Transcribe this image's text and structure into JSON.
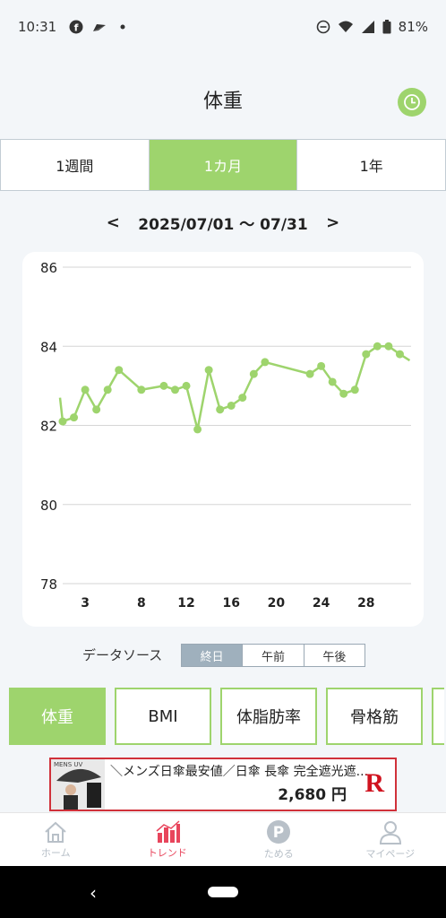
{
  "status_bar": {
    "time": "10:31",
    "battery": "81%"
  },
  "header": {
    "title": "体重"
  },
  "period_tabs": [
    {
      "label": "1週間",
      "active": false
    },
    {
      "label": "1カ月",
      "active": true
    },
    {
      "label": "1年",
      "active": false
    }
  ],
  "date_nav": {
    "prev": "<",
    "range": "2025/07/01 〜 07/31",
    "next": ">"
  },
  "chart_data": {
    "type": "line",
    "title": "",
    "xlabel": "",
    "ylabel": "",
    "x": [
      1,
      2,
      3,
      4,
      5,
      6,
      8,
      10,
      11,
      12,
      13,
      14,
      15,
      16,
      17,
      18,
      19,
      23,
      24,
      25,
      26,
      27,
      28,
      29,
      30,
      31
    ],
    "y": [
      82.1,
      82.2,
      82.9,
      82.4,
      82.9,
      83.4,
      82.9,
      83.0,
      82.9,
      83.0,
      81.9,
      83.4,
      82.4,
      82.5,
      82.7,
      83.3,
      83.6,
      83.3,
      83.5,
      83.1,
      82.8,
      82.9,
      83.8,
      84.0,
      84.0,
      83.8
    ],
    "start_value": 82.7,
    "ylim": [
      78,
      86
    ],
    "yticks": [
      "86",
      "84",
      "82",
      "80",
      "78"
    ],
    "xticks": [
      "3",
      "8",
      "12",
      "16",
      "20",
      "24",
      "28"
    ],
    "xtick_values": [
      3,
      8,
      12,
      16,
      20,
      24,
      28
    ],
    "grid": true,
    "line_color": "#9ed46d"
  },
  "data_source": {
    "label": "データソース",
    "options": [
      {
        "label": "終日",
        "active": true
      },
      {
        "label": "午前",
        "active": false
      },
      {
        "label": "午後",
        "active": false
      }
    ]
  },
  "metric_tabs": [
    {
      "label": "体重",
      "active": true
    },
    {
      "label": "BMI",
      "active": false
    },
    {
      "label": "体脂肪率",
      "active": false
    },
    {
      "label": "骨格筋",
      "active": false
    }
  ],
  "ad": {
    "brand_label": "MENS UV",
    "text": "＼メンズ日傘最安値／日傘 長傘 完全遮光遮...",
    "price": "2,680 円",
    "logo": "R"
  },
  "bottom_nav": [
    {
      "label": "ホーム",
      "icon": "home-icon",
      "active": false
    },
    {
      "label": "トレンド",
      "icon": "trend-icon",
      "active": true
    },
    {
      "label": "ためる",
      "icon": "points-icon",
      "active": false
    },
    {
      "label": "マイページ",
      "icon": "person-icon",
      "active": false
    }
  ],
  "colors": {
    "accent": "#9ed46d",
    "active_nav": "#e8455c",
    "ad_border": "#d0313a"
  }
}
